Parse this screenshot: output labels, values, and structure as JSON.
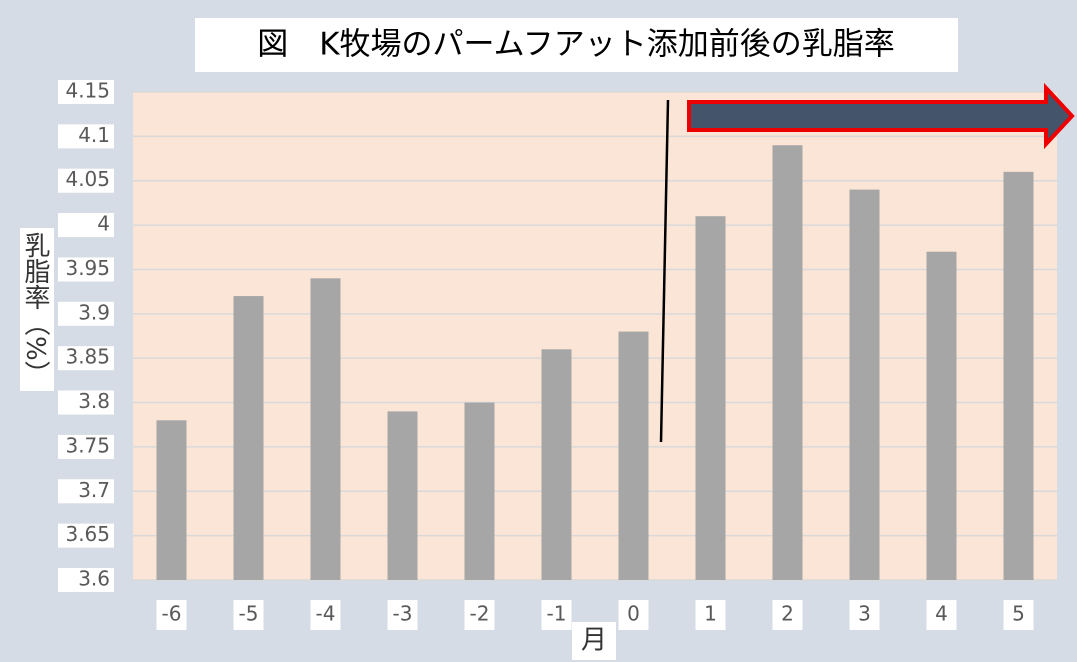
{
  "chart_data": {
    "type": "bar",
    "title": "図　K牧場のパームフアット添加前後の乳脂率",
    "x_label": "月",
    "y_label": "乳脂率（%）",
    "categories": [
      "-6",
      "-5",
      "-4",
      "-3",
      "-2",
      "-1",
      "0",
      "1",
      "2",
      "3",
      "4",
      "5"
    ],
    "values": [
      3.78,
      3.92,
      3.94,
      3.79,
      3.8,
      3.86,
      3.88,
      4.01,
      4.09,
      4.04,
      3.97,
      4.06
    ],
    "color": "#a6a6a6",
    "ylim": [
      3.6,
      4.15
    ],
    "yticks": [
      3.6,
      3.65,
      3.7,
      3.75,
      3.8,
      3.85,
      3.9,
      3.95,
      4,
      4.05,
      4.1,
      4.15
    ],
    "grid": true
  }
}
